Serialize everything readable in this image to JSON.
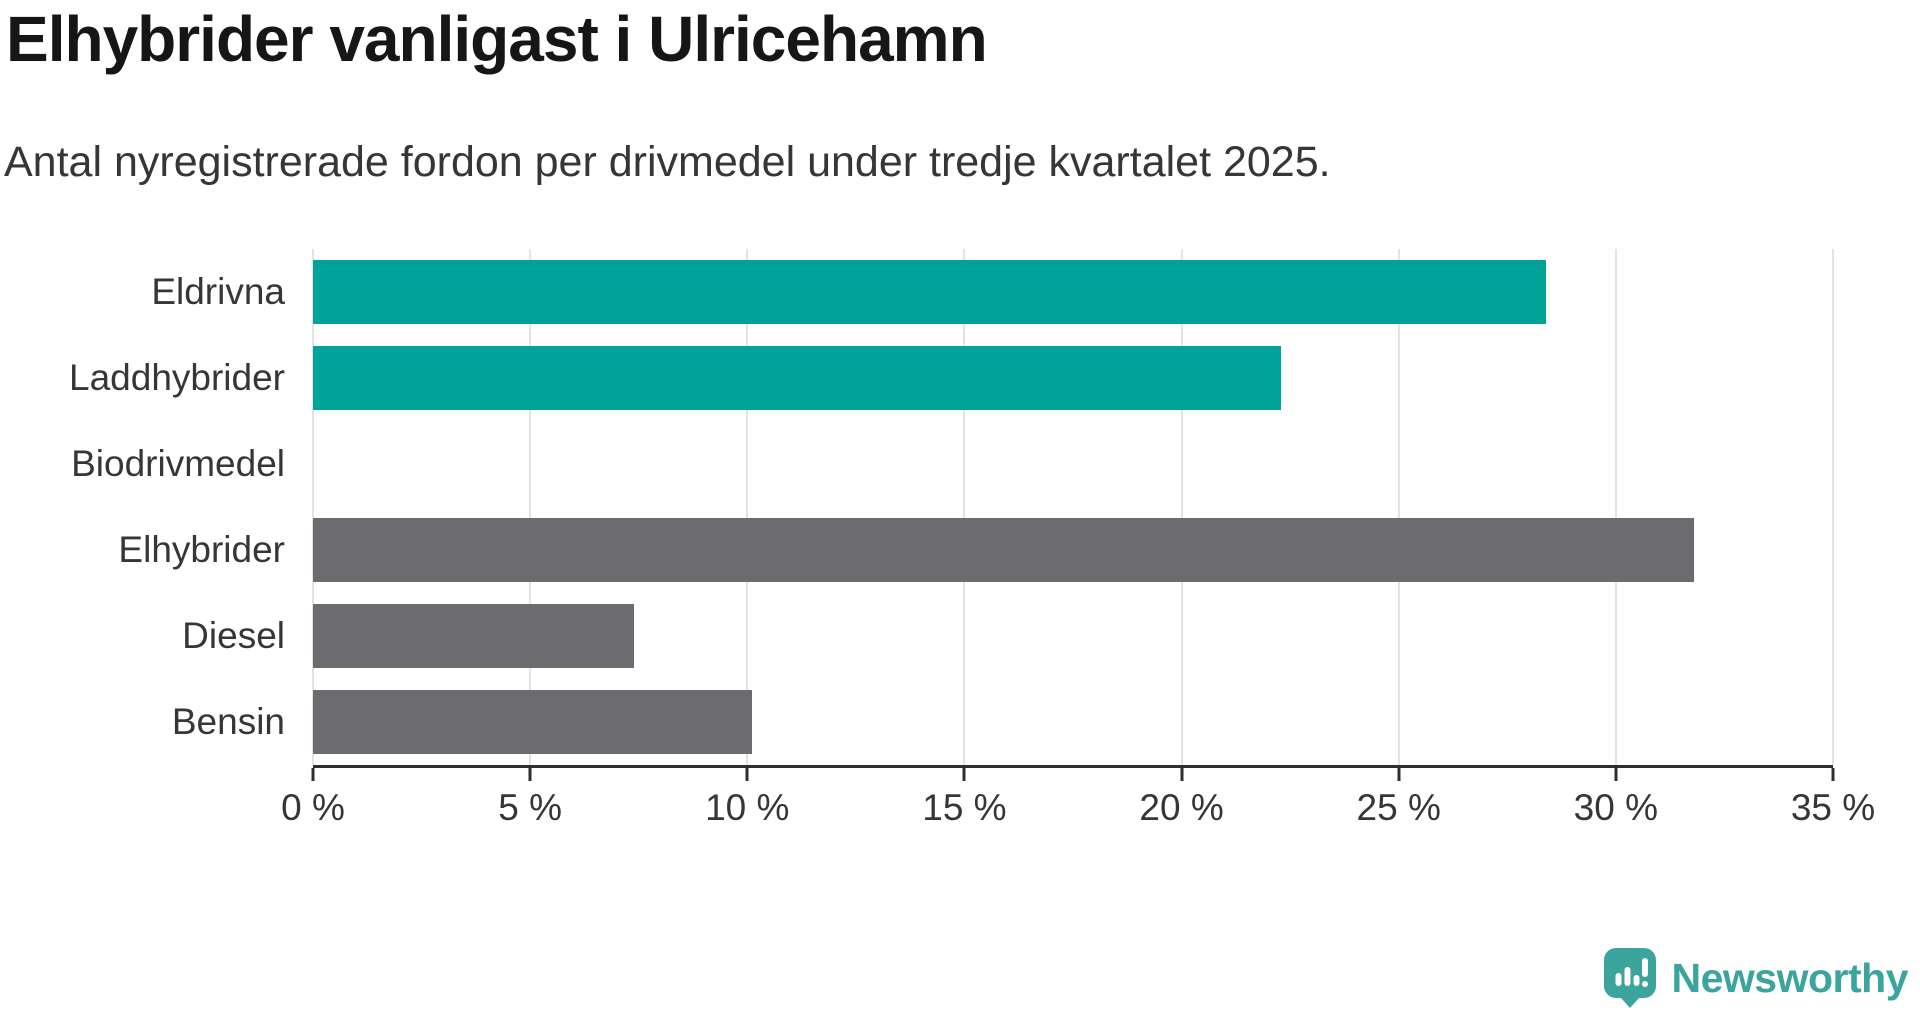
{
  "title": "Elhybrider vanligast i Ulricehamn",
  "subtitle": "Antal nyregistrerade fordon per drivmedel under tredje kvartalet 2025.",
  "colors": {
    "highlight_bar": "#00a29a",
    "default_bar": "#6c6b70",
    "grid": "#e3e3e3",
    "axis": "#2f2f2f",
    "label_text": "#363636",
    "title_text": "#161616",
    "logo_teal": "#3ba49d"
  },
  "chart_data": {
    "type": "bar",
    "orientation": "horizontal",
    "title": "Elhybrider vanligast i Ulricehamn",
    "subtitle": "Antal nyregistrerade fordon per drivmedel under tredje kvartalet 2025.",
    "categories": [
      "Eldrivna",
      "Laddhybrider",
      "Biodrivmedel",
      "Elhybrider",
      "Diesel",
      "Bensin"
    ],
    "values": [
      28.4,
      22.3,
      0,
      31.8,
      7.4,
      10.1
    ],
    "bar_colors": [
      "#00a29a",
      "#00a29a",
      "#6c6b70",
      "#6c6b70",
      "#6c6b70",
      "#6c6b70"
    ],
    "unit": "%",
    "xlabel": "",
    "ylabel": "",
    "xlim": [
      0,
      35
    ],
    "xticks": [
      0,
      5,
      10,
      15,
      20,
      25,
      30,
      35
    ],
    "xtick_labels": [
      "0 %",
      "5 %",
      "10 %",
      "15 %",
      "20 %",
      "25 %",
      "30 %",
      "35 %"
    ],
    "grid": "vertical",
    "legend": "none"
  },
  "branding": {
    "logo_text": "Newsworthy",
    "logo_icon": "newsworthy-speech-bubble-chart-icon"
  }
}
